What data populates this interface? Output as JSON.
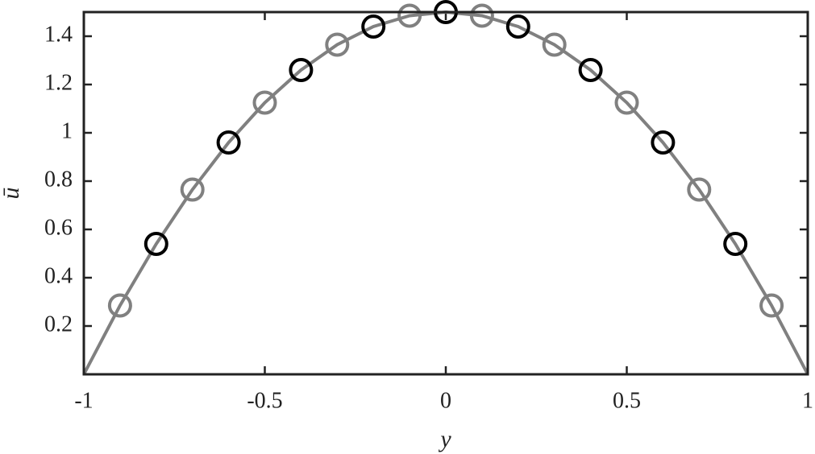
{
  "chart_data": {
    "type": "line",
    "x_label": "y",
    "y_label": "ū",
    "xlim": [
      -1,
      1
    ],
    "ylim": [
      0,
      1.5
    ],
    "xticks": [
      -1,
      -0.5,
      0,
      0.5,
      1
    ],
    "yticks": [
      0.2,
      0.4,
      0.6,
      0.8,
      1,
      1.2,
      1.4
    ],
    "grid": false,
    "series": [
      {
        "mode": "line",
        "color": "#808080",
        "x": [
          -1,
          -0.9,
          -0.8,
          -0.7,
          -0.6,
          -0.5,
          -0.4,
          -0.3,
          -0.2,
          -0.1,
          0,
          0.1,
          0.2,
          0.3,
          0.4,
          0.5,
          0.6,
          0.7,
          0.8,
          0.9,
          1
        ],
        "values": [
          0,
          0.285,
          0.54,
          0.765,
          0.96,
          1.125,
          1.26,
          1.365,
          1.44,
          1.485,
          1.5,
          1.485,
          1.44,
          1.365,
          1.26,
          1.125,
          0.96,
          0.765,
          0.54,
          0.285,
          0
        ]
      },
      {
        "mode": "markers",
        "color": "#000000",
        "x": [
          -0.8,
          -0.6,
          -0.4,
          -0.2,
          0,
          0.2,
          0.4,
          0.6,
          0.8
        ],
        "values": [
          0.54,
          0.96,
          1.26,
          1.44,
          1.5,
          1.44,
          1.26,
          0.96,
          0.54
        ]
      },
      {
        "mode": "markers",
        "color": "#808080",
        "x": [
          -0.9,
          -0.7,
          -0.5,
          -0.3,
          -0.1,
          0.1,
          0.3,
          0.5,
          0.7,
          0.9
        ],
        "values": [
          0.285,
          0.765,
          1.125,
          1.365,
          1.485,
          1.485,
          1.365,
          1.125,
          0.765,
          0.285
        ]
      }
    ]
  }
}
